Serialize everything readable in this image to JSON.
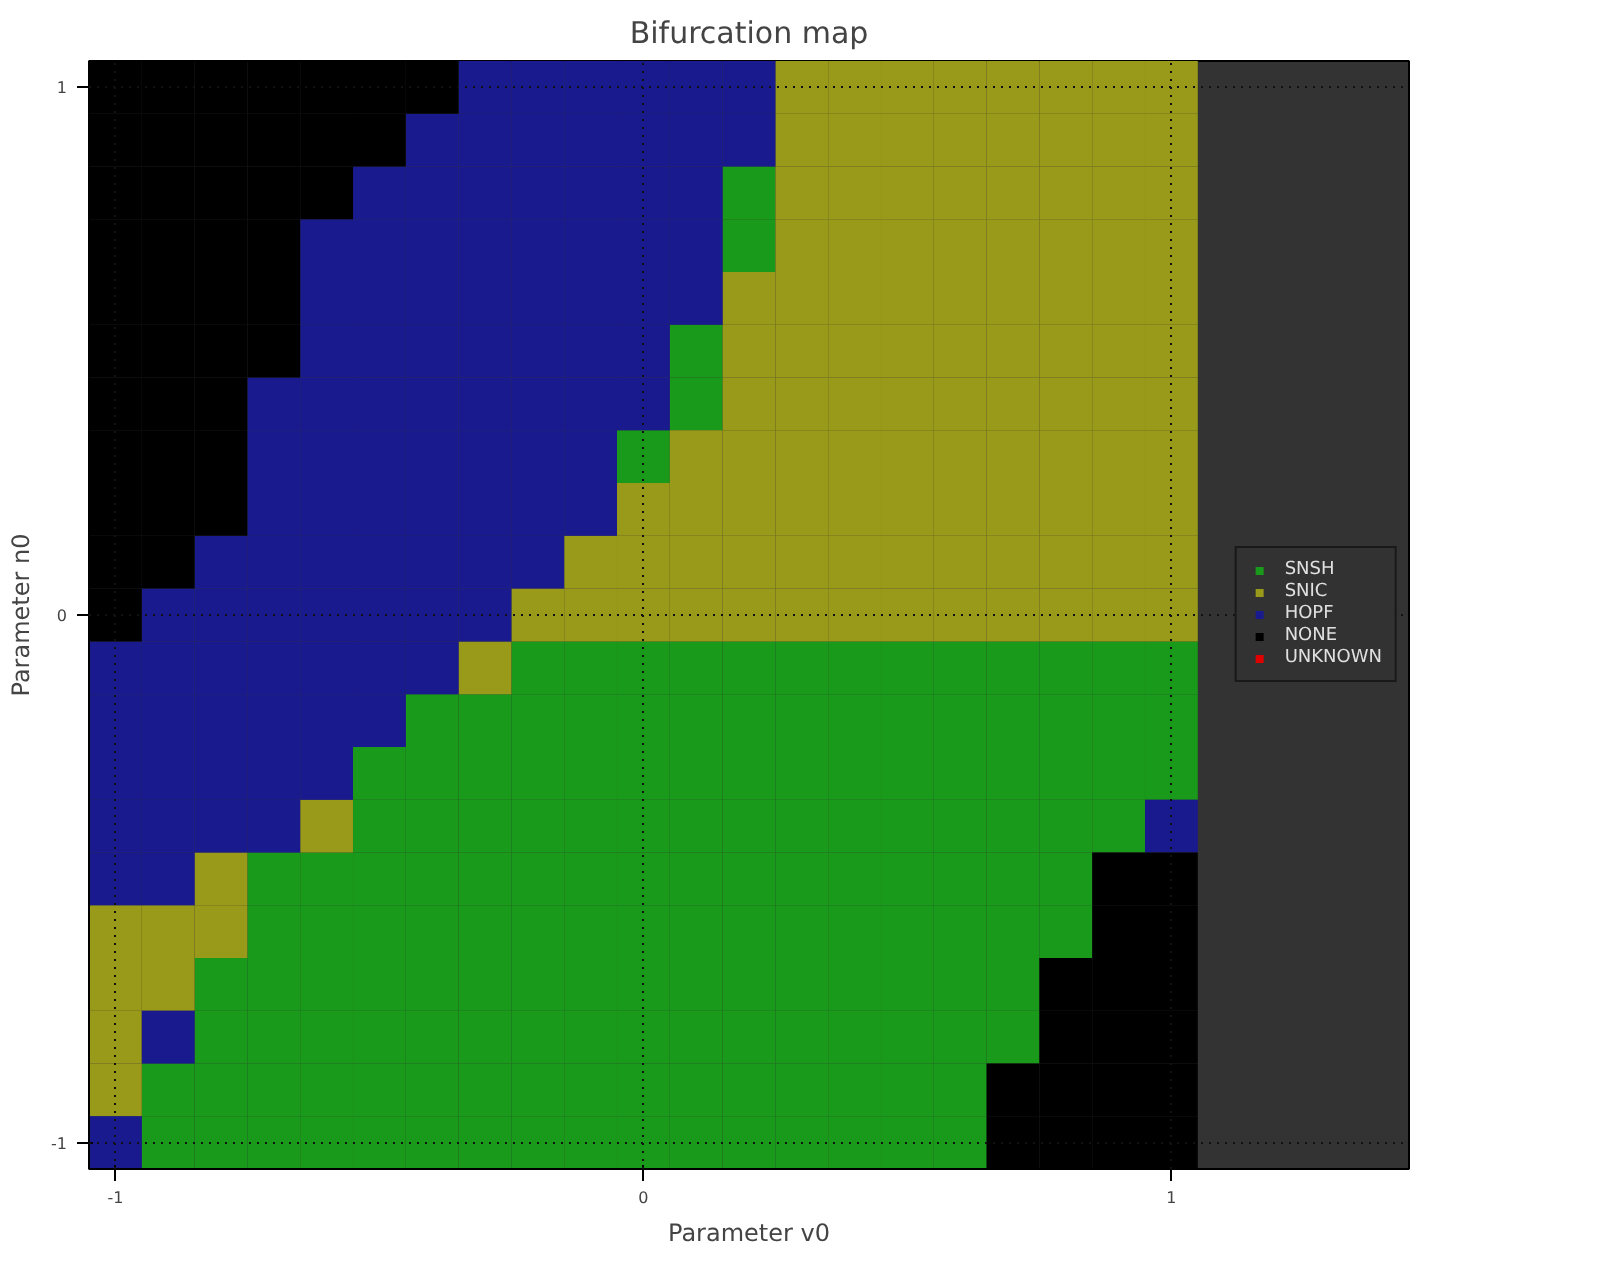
{
  "chart_data": {
    "type": "scatter",
    "marker": "square",
    "title": "Bifurcation map",
    "xlabel": "Parameter v0",
    "ylabel": "Parameter n0",
    "series": [
      {
        "name": "SNSH",
        "color": "#1a9a1a",
        "x": [
          0.2,
          0.2,
          0.1,
          0.1,
          0,
          -0.2,
          -0.1,
          0,
          0.1,
          0.2,
          0.3,
          0.4,
          0.5,
          0.6,
          0.7,
          0.8,
          0.9,
          1,
          -0.4,
          -0.3,
          -0.2,
          -0.1,
          0,
          0.1,
          0.2,
          0.3,
          0.4,
          0.5,
          0.6,
          0.7,
          0.8,
          0.9,
          1,
          -0.5,
          -0.4,
          -0.3,
          -0.2,
          -0.1,
          0,
          0.1,
          0.2,
          0.3,
          0.4,
          0.5,
          0.6,
          0.7,
          0.8,
          0.9,
          1,
          -0.5,
          -0.4,
          -0.3,
          -0.2,
          -0.1,
          0,
          0.1,
          0.2,
          0.3,
          0.4,
          0.5,
          0.6,
          0.7,
          0.8,
          0.9,
          -0.7,
          -0.6,
          -0.5,
          -0.4,
          -0.3,
          -0.2,
          -0.1,
          0,
          0.1,
          0.2,
          0.3,
          0.4,
          0.5,
          0.6,
          0.7,
          0.8,
          -0.7,
          -0.6,
          -0.5,
          -0.4,
          -0.3,
          -0.2,
          -0.1,
          0,
          0.1,
          0.2,
          0.3,
          0.4,
          0.5,
          0.6,
          0.7,
          0.8,
          -0.8,
          -0.7,
          -0.6,
          -0.5,
          -0.4,
          -0.3,
          -0.2,
          -0.1,
          0,
          0.1,
          0.2,
          0.3,
          0.4,
          0.5,
          0.6,
          0.7,
          -0.8,
          -0.7,
          -0.6,
          -0.5,
          -0.4,
          -0.3,
          -0.2,
          -0.1,
          0,
          0.1,
          0.2,
          0.3,
          0.4,
          0.5,
          0.6,
          0.7,
          -0.9,
          -0.8,
          -0.7,
          -0.6,
          -0.5,
          -0.4,
          -0.3,
          -0.2,
          -0.1,
          0,
          0.1,
          0.2,
          0.3,
          0.4,
          0.5,
          0.6,
          -0.9,
          -0.8,
          -0.7,
          -0.6,
          -0.5,
          -0.4,
          -0.3,
          -0.2,
          -0.1,
          0,
          0.1,
          0.2,
          0.3,
          0.4,
          0.5,
          0.6
        ],
        "values": [
          0.8,
          0.7,
          0.5,
          0.4,
          0.3,
          -0.1,
          -0.1,
          -0.1,
          -0.1,
          -0.1,
          -0.1,
          -0.1,
          -0.1,
          -0.1,
          -0.1,
          -0.1,
          -0.1,
          -0.1,
          -0.2,
          -0.2,
          -0.2,
          -0.2,
          -0.2,
          -0.2,
          -0.2,
          -0.2,
          -0.2,
          -0.2,
          -0.2,
          -0.2,
          -0.2,
          -0.2,
          -0.2,
          -0.3,
          -0.3,
          -0.3,
          -0.3,
          -0.3,
          -0.3,
          -0.3,
          -0.3,
          -0.3,
          -0.3,
          -0.3,
          -0.3,
          -0.3,
          -0.3,
          -0.3,
          -0.3,
          -0.4,
          -0.4,
          -0.4,
          -0.4,
          -0.4,
          -0.4,
          -0.4,
          -0.4,
          -0.4,
          -0.4,
          -0.4,
          -0.4,
          -0.4,
          -0.4,
          -0.4,
          -0.5,
          -0.5,
          -0.5,
          -0.5,
          -0.5,
          -0.5,
          -0.5,
          -0.5,
          -0.5,
          -0.5,
          -0.5,
          -0.5,
          -0.5,
          -0.5,
          -0.5,
          -0.5,
          -0.6,
          -0.6,
          -0.6,
          -0.6,
          -0.6,
          -0.6,
          -0.6,
          -0.6,
          -0.6,
          -0.6,
          -0.6,
          -0.6,
          -0.6,
          -0.6,
          -0.6,
          -0.6,
          -0.7,
          -0.7,
          -0.7,
          -0.7,
          -0.7,
          -0.7,
          -0.7,
          -0.7,
          -0.7,
          -0.7,
          -0.7,
          -0.7,
          -0.7,
          -0.7,
          -0.7,
          -0.7,
          -0.8,
          -0.8,
          -0.8,
          -0.8,
          -0.8,
          -0.8,
          -0.8,
          -0.8,
          -0.8,
          -0.8,
          -0.8,
          -0.8,
          -0.8,
          -0.8,
          -0.8,
          -0.8,
          -0.9,
          -0.9,
          -0.9,
          -0.9,
          -0.9,
          -0.9,
          -0.9,
          -0.9,
          -0.9,
          -0.9,
          -0.9,
          -0.9,
          -0.9,
          -0.9,
          -0.9,
          -0.9,
          -1,
          -1,
          -1,
          -1,
          -1,
          -1,
          -1,
          -1,
          -1,
          -1,
          -1,
          -1,
          -1,
          -1,
          -1,
          -1
        ]
      },
      {
        "name": "SNIC",
        "color": "#9a9a1a",
        "x": [
          0.3,
          0.4,
          0.5,
          0.6,
          0.7,
          0.8,
          0.9,
          1,
          0.3,
          0.4,
          0.5,
          0.6,
          0.7,
          0.8,
          0.9,
          1,
          0.3,
          0.4,
          0.5,
          0.6,
          0.7,
          0.8,
          0.9,
          1,
          0.3,
          0.4,
          0.5,
          0.6,
          0.7,
          0.8,
          0.9,
          1,
          0.2,
          0.3,
          0.4,
          0.5,
          0.6,
          0.7,
          0.8,
          0.9,
          1,
          0.2,
          0.3,
          0.4,
          0.5,
          0.6,
          0.7,
          0.8,
          0.9,
          1,
          0.2,
          0.3,
          0.4,
          0.5,
          0.6,
          0.7,
          0.8,
          0.9,
          1,
          0.1,
          0.2,
          0.3,
          0.4,
          0.5,
          0.6,
          0.7,
          0.8,
          0.9,
          1,
          0,
          0.1,
          0.2,
          0.3,
          0.4,
          0.5,
          0.6,
          0.7,
          0.8,
          0.9,
          1,
          -0.1,
          0,
          0.1,
          0.2,
          0.3,
          0.4,
          0.5,
          0.6,
          0.7,
          0.8,
          0.9,
          1,
          -0.2,
          -0.1,
          0,
          0.1,
          0.2,
          0.3,
          0.4,
          0.5,
          0.6,
          0.7,
          0.8,
          0.9,
          1,
          -0.3,
          -0.6,
          -0.8,
          -1,
          -0.9,
          -0.8,
          -1,
          -0.9,
          -1,
          -1
        ],
        "values": [
          1,
          1,
          1,
          1,
          1,
          1,
          1,
          1,
          0.9,
          0.9,
          0.9,
          0.9,
          0.9,
          0.9,
          0.9,
          0.9,
          0.8,
          0.8,
          0.8,
          0.8,
          0.8,
          0.8,
          0.8,
          0.8,
          0.7,
          0.7,
          0.7,
          0.7,
          0.7,
          0.7,
          0.7,
          0.7,
          0.6,
          0.6,
          0.6,
          0.6,
          0.6,
          0.6,
          0.6,
          0.6,
          0.6,
          0.5,
          0.5,
          0.5,
          0.5,
          0.5,
          0.5,
          0.5,
          0.5,
          0.5,
          0.4,
          0.4,
          0.4,
          0.4,
          0.4,
          0.4,
          0.4,
          0.4,
          0.4,
          0.3,
          0.3,
          0.3,
          0.3,
          0.3,
          0.3,
          0.3,
          0.3,
          0.3,
          0.3,
          0.2,
          0.2,
          0.2,
          0.2,
          0.2,
          0.2,
          0.2,
          0.2,
          0.2,
          0.2,
          0.2,
          0.1,
          0.1,
          0.1,
          0.1,
          0.1,
          0.1,
          0.1,
          0.1,
          0.1,
          0.1,
          0.1,
          0.1,
          0,
          0,
          0,
          0,
          0,
          0,
          0,
          0,
          0,
          0,
          0,
          0,
          0,
          -0.1,
          -0.4,
          -0.5,
          -0.6,
          -0.6,
          -0.6,
          -0.7,
          -0.7,
          -0.8,
          -0.9
        ]
      },
      {
        "name": "HOPF",
        "color": "#1a1a8f",
        "x": [
          -0.3,
          -0.2,
          -0.1,
          0,
          0.1,
          0.2,
          -0.4,
          -0.3,
          -0.2,
          -0.1,
          0,
          0.1,
          0.2,
          -0.5,
          -0.4,
          -0.3,
          -0.2,
          -0.1,
          0,
          0.1,
          -0.6,
          -0.5,
          -0.4,
          -0.3,
          -0.2,
          -0.1,
          0,
          0.1,
          -0.6,
          -0.5,
          -0.4,
          -0.3,
          -0.2,
          -0.1,
          0,
          0.1,
          -0.6,
          -0.5,
          -0.4,
          -0.3,
          -0.2,
          -0.1,
          0,
          -0.7,
          -0.6,
          -0.5,
          -0.4,
          -0.3,
          -0.2,
          -0.1,
          0,
          -0.7,
          -0.6,
          -0.5,
          -0.4,
          -0.3,
          -0.2,
          -0.1,
          -0.7,
          -0.6,
          -0.5,
          -0.4,
          -0.3,
          -0.2,
          -0.1,
          -0.8,
          -0.7,
          -0.6,
          -0.5,
          -0.4,
          -0.3,
          -0.2,
          -0.9,
          -0.8,
          -0.7,
          -0.6,
          -0.5,
          -0.4,
          -0.3,
          -1,
          -0.9,
          -0.8,
          -0.7,
          -0.6,
          -0.5,
          -0.4,
          -1,
          -0.9,
          -0.8,
          -0.7,
          -0.6,
          -0.5,
          -1,
          -0.9,
          -0.8,
          -0.7,
          -0.6,
          -1,
          -0.9,
          -0.8,
          -0.7,
          1,
          -1,
          -0.9,
          -0.9,
          -1
        ],
        "values": [
          1,
          1,
          1,
          1,
          1,
          1,
          0.9,
          0.9,
          0.9,
          0.9,
          0.9,
          0.9,
          0.9,
          0.8,
          0.8,
          0.8,
          0.8,
          0.8,
          0.8,
          0.8,
          0.7,
          0.7,
          0.7,
          0.7,
          0.7,
          0.7,
          0.7,
          0.7,
          0.6,
          0.6,
          0.6,
          0.6,
          0.6,
          0.6,
          0.6,
          0.6,
          0.5,
          0.5,
          0.5,
          0.5,
          0.5,
          0.5,
          0.5,
          0.4,
          0.4,
          0.4,
          0.4,
          0.4,
          0.4,
          0.4,
          0.4,
          0.3,
          0.3,
          0.3,
          0.3,
          0.3,
          0.3,
          0.3,
          0.2,
          0.2,
          0.2,
          0.2,
          0.2,
          0.2,
          0.2,
          0.1,
          0.1,
          0.1,
          0.1,
          0.1,
          0.1,
          0.1,
          0,
          0,
          0,
          0,
          0,
          0,
          0,
          -0.1,
          -0.1,
          -0.1,
          -0.1,
          -0.1,
          -0.1,
          -0.1,
          -0.2,
          -0.2,
          -0.2,
          -0.2,
          -0.2,
          -0.2,
          -0.3,
          -0.3,
          -0.3,
          -0.3,
          -0.3,
          -0.4,
          -0.4,
          -0.4,
          -0.4,
          -0.4,
          -0.5,
          -0.5,
          -0.8,
          -1
        ]
      },
      {
        "name": "NONE",
        "color": "#000000",
        "x": [
          -1,
          -0.9,
          -0.8,
          -0.7,
          -0.6,
          -0.5,
          -0.4,
          -1,
          -0.9,
          -0.8,
          -0.7,
          -0.6,
          -0.5,
          -1,
          -0.9,
          -0.8,
          -0.7,
          -0.6,
          -1,
          -0.9,
          -0.8,
          -0.7,
          -1,
          -0.9,
          -0.8,
          -0.7,
          -1,
          -0.9,
          -0.8,
          -0.7,
          -1,
          -0.9,
          -0.8,
          -1,
          -0.9,
          -0.8,
          -1,
          -0.9,
          -0.8,
          -1,
          -0.9,
          -1,
          0.9,
          1,
          0.9,
          1,
          0.8,
          0.9,
          1,
          0.8,
          0.9,
          1,
          0.7,
          0.8,
          0.9,
          1,
          0.7,
          0.8,
          0.9,
          1
        ],
        "values": [
          1,
          1,
          1,
          1,
          1,
          1,
          1,
          0.9,
          0.9,
          0.9,
          0.9,
          0.9,
          0.9,
          0.8,
          0.8,
          0.8,
          0.8,
          0.8,
          0.7,
          0.7,
          0.7,
          0.7,
          0.6,
          0.6,
          0.6,
          0.6,
          0.5,
          0.5,
          0.5,
          0.5,
          0.4,
          0.4,
          0.4,
          0.3,
          0.3,
          0.3,
          0.2,
          0.2,
          0.2,
          0.1,
          0.1,
          0,
          -0.5,
          -0.5,
          -0.6,
          -0.6,
          -0.7,
          -0.7,
          -0.7,
          -0.8,
          -0.8,
          -0.8,
          -0.9,
          -0.9,
          -0.9,
          -0.9,
          -1,
          -1,
          -1,
          -1
        ]
      },
      {
        "name": "UNKNOWN",
        "color": "#e00000"
      }
    ],
    "xlim": [
      -1.05,
      1.45
    ],
    "ylim": [
      -1.05,
      1.05
    ],
    "xticks": [
      -1,
      0,
      1
    ],
    "yticks": [
      -1,
      0,
      1
    ],
    "grid": true,
    "legend": "right"
  }
}
